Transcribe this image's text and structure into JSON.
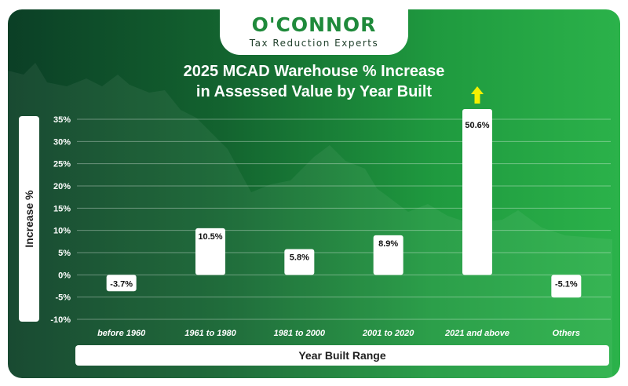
{
  "brand": {
    "name": "O'CONNOR",
    "tagline": "Tax Reduction Experts"
  },
  "colors": {
    "bg_dark": "#0b3f26",
    "bg_light": "#2bb24a",
    "bar": "#ffffff",
    "arrow": "#f4f000",
    "brand_green": "#1f8a3b"
  },
  "chart_data": {
    "type": "bar",
    "title": "2025 MCAD Warehouse % Increase in Assessed Value by Year Built",
    "title_lines": [
      "2025 MCAD Warehouse % Increase",
      "in Assessed Value by Year Built"
    ],
    "xlabel": "Year Built Range",
    "ylabel": "Increase %",
    "categories": [
      "before 1960",
      "1961 to 1980",
      "1981 to 2000",
      "2001 to 2020",
      "2021 and above",
      "Others"
    ],
    "values": [
      -3.7,
      10.5,
      5.8,
      8.9,
      50.6,
      -5.1
    ],
    "data_labels": [
      "-3.7%",
      "10.5%",
      "5.8%",
      "8.9%",
      "50.6%",
      "-5.1%"
    ],
    "ylim": [
      -10,
      35
    ],
    "yticks": [
      35,
      30,
      25,
      20,
      15,
      10,
      5,
      0,
      -5,
      -10
    ],
    "ytick_labels": [
      "35%",
      "30%",
      "25%",
      "20%",
      "15%",
      "10%",
      "5%",
      "0%",
      "-5%",
      "-10%"
    ],
    "grid": true,
    "truncated_bar_index": 4
  }
}
